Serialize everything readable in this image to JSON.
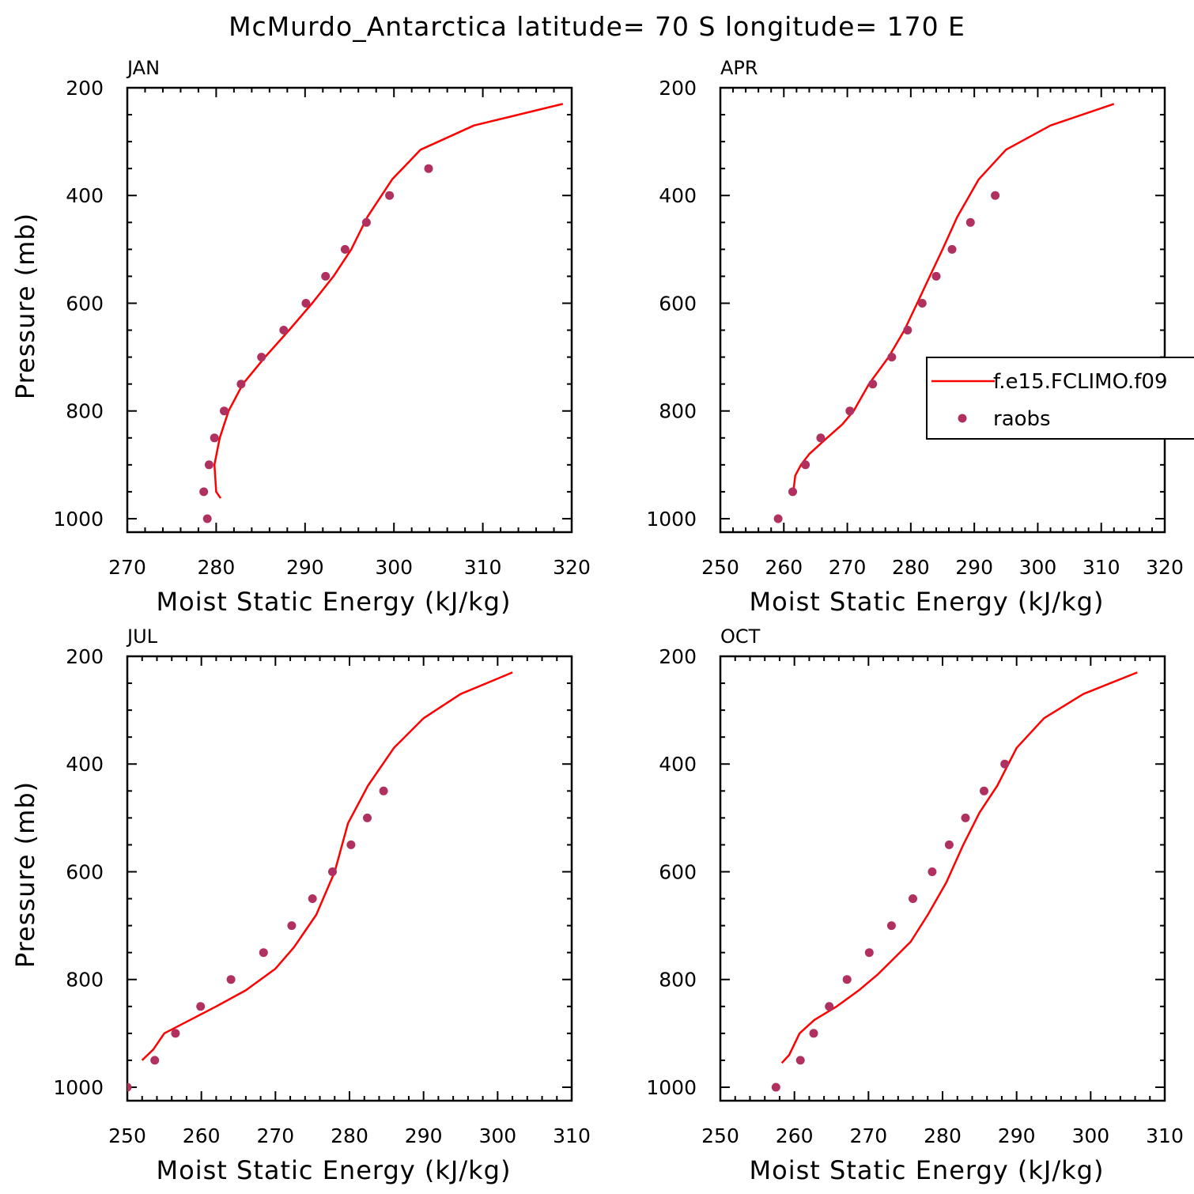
{
  "title": "McMurdo_Antarctica  latitude= 70 S longitude= 170 E",
  "colors": {
    "model": "#ff0000",
    "obs": "#b03060",
    "axes": "#000000"
  },
  "legend": {
    "entries": [
      {
        "label": "f.e15.FCLIMO.f09",
        "kind": "line"
      },
      {
        "label": "raobs",
        "kind": "marker"
      }
    ]
  },
  "chart_data": [
    {
      "type": "line",
      "panel": "JAN",
      "xlabel": "Moist Static Energy (kJ/kg)",
      "ylabel": "Pressure (mb)",
      "xlim": [
        270,
        320
      ],
      "ylim": [
        1025,
        200
      ],
      "xticks": [
        270,
        280,
        290,
        300,
        310,
        320
      ],
      "yticks": [
        200,
        400,
        600,
        800,
        1000
      ],
      "series": [
        {
          "name": "f.e15.FCLIMO.f09",
          "kind": "line",
          "points": [
            [
              280.5,
              962
            ],
            [
              280.0,
              950
            ],
            [
              279.8,
              900
            ],
            [
              280.4,
              850
            ],
            [
              281.4,
              800
            ],
            [
              283.0,
              750
            ],
            [
              285.5,
              700
            ],
            [
              288.2,
              650
            ],
            [
              290.8,
              600
            ],
            [
              293.2,
              550
            ],
            [
              295.2,
              500
            ],
            [
              297.0,
              440
            ],
            [
              299.8,
              370
            ],
            [
              303.0,
              315
            ],
            [
              309.0,
              270
            ],
            [
              319.0,
              230
            ]
          ]
        },
        {
          "name": "raobs",
          "kind": "scatter",
          "points": [
            [
              279.0,
              1000
            ],
            [
              278.6,
              950
            ],
            [
              279.2,
              900
            ],
            [
              279.8,
              850
            ],
            [
              280.9,
              800
            ],
            [
              282.8,
              750
            ],
            [
              285.1,
              700
            ],
            [
              287.6,
              650
            ],
            [
              290.1,
              600
            ],
            [
              292.3,
              550
            ],
            [
              294.5,
              500
            ],
            [
              296.9,
              450
            ],
            [
              299.5,
              400
            ],
            [
              303.9,
              350
            ]
          ]
        }
      ]
    },
    {
      "type": "line",
      "panel": "APR",
      "xlabel": "Moist Static Energy (kJ/kg)",
      "ylabel": "",
      "xlim": [
        250,
        320
      ],
      "ylim": [
        1025,
        200
      ],
      "xticks": [
        250,
        260,
        270,
        280,
        290,
        300,
        310,
        320
      ],
      "yticks": [
        200,
        400,
        600,
        800,
        1000
      ],
      "series": [
        {
          "name": "f.e15.FCLIMO.f09",
          "kind": "line",
          "points": [
            [
              261.5,
              950
            ],
            [
              261.8,
              920
            ],
            [
              262.7,
              900
            ],
            [
              264.0,
              880
            ],
            [
              266.8,
              850
            ],
            [
              269.2,
              825
            ],
            [
              271.0,
              800
            ],
            [
              273.4,
              750
            ],
            [
              276.5,
              700
            ],
            [
              279.0,
              650
            ],
            [
              281.0,
              600
            ],
            [
              283.0,
              550
            ],
            [
              285.0,
              500
            ],
            [
              287.3,
              440
            ],
            [
              290.7,
              370
            ],
            [
              295.0,
              315
            ],
            [
              302.0,
              270
            ],
            [
              312.0,
              230
            ]
          ]
        },
        {
          "name": "raobs",
          "kind": "scatter",
          "points": [
            [
              259.1,
              1000
            ],
            [
              261.4,
              950
            ],
            [
              263.4,
              900
            ],
            [
              265.8,
              850
            ],
            [
              270.4,
              800
            ],
            [
              274.0,
              750
            ],
            [
              277.0,
              700
            ],
            [
              279.5,
              650
            ],
            [
              281.8,
              600
            ],
            [
              284.0,
              550
            ],
            [
              286.5,
              500
            ],
            [
              289.4,
              450
            ],
            [
              293.3,
              400
            ]
          ]
        }
      ]
    },
    {
      "type": "line",
      "panel": "JUL",
      "xlabel": "Moist Static Energy (kJ/kg)",
      "ylabel": "Pressure (mb)",
      "xlim": [
        250,
        310
      ],
      "ylim": [
        1025,
        200
      ],
      "xticks": [
        250,
        260,
        270,
        280,
        290,
        300,
        310
      ],
      "yticks": [
        200,
        400,
        600,
        800,
        1000
      ],
      "series": [
        {
          "name": "f.e15.FCLIMO.f09",
          "kind": "line",
          "points": [
            [
              252.0,
              950
            ],
            [
              253.5,
              930
            ],
            [
              255.0,
              900
            ],
            [
              258.5,
              875
            ],
            [
              262.0,
              850
            ],
            [
              266.0,
              820
            ],
            [
              270.0,
              780
            ],
            [
              272.5,
              740
            ],
            [
              275.5,
              680
            ],
            [
              278.0,
              600
            ],
            [
              279.8,
              510
            ],
            [
              282.5,
              440
            ],
            [
              286.0,
              370
            ],
            [
              290.0,
              315
            ],
            [
              295.0,
              270
            ],
            [
              302.0,
              230
            ]
          ]
        },
        {
          "name": "raobs",
          "kind": "scatter",
          "points": [
            [
              250.0,
              1000
            ],
            [
              253.7,
              950
            ],
            [
              256.5,
              900
            ],
            [
              259.9,
              850
            ],
            [
              264.0,
              800
            ],
            [
              268.4,
              750
            ],
            [
              272.2,
              700
            ],
            [
              275.0,
              650
            ],
            [
              277.7,
              600
            ],
            [
              280.2,
              550
            ],
            [
              282.4,
              500
            ],
            [
              284.6,
              450
            ]
          ]
        }
      ]
    },
    {
      "type": "line",
      "panel": "OCT",
      "xlabel": "Moist Static Energy (kJ/kg)",
      "ylabel": "",
      "xlim": [
        250,
        310
      ],
      "ylim": [
        1025,
        200
      ],
      "xticks": [
        250,
        260,
        270,
        280,
        290,
        300,
        310
      ],
      "yticks": [
        200,
        400,
        600,
        800,
        1000
      ],
      "series": [
        {
          "name": "f.e15.FCLIMO.f09",
          "kind": "line",
          "points": [
            [
              258.3,
              955
            ],
            [
              259.3,
              940
            ],
            [
              260.7,
              900
            ],
            [
              262.7,
              875
            ],
            [
              265.7,
              850
            ],
            [
              268.7,
              820
            ],
            [
              271.3,
              790
            ],
            [
              273.5,
              760
            ],
            [
              275.7,
              730
            ],
            [
              278.0,
              680
            ],
            [
              280.5,
              620
            ],
            [
              282.8,
              550
            ],
            [
              285.0,
              490
            ],
            [
              287.4,
              440
            ],
            [
              290.0,
              370
            ],
            [
              293.7,
              315
            ],
            [
              299.0,
              270
            ],
            [
              306.3,
              230
            ]
          ]
        },
        {
          "name": "raobs",
          "kind": "scatter",
          "points": [
            [
              257.5,
              1000
            ],
            [
              260.8,
              950
            ],
            [
              262.6,
              900
            ],
            [
              264.7,
              850
            ],
            [
              267.1,
              800
            ],
            [
              270.1,
              750
            ],
            [
              273.1,
              700
            ],
            [
              276.0,
              650
            ],
            [
              278.6,
              600
            ],
            [
              280.9,
              550
            ],
            [
              283.1,
              500
            ],
            [
              285.6,
              450
            ],
            [
              288.4,
              400
            ]
          ]
        }
      ]
    }
  ]
}
